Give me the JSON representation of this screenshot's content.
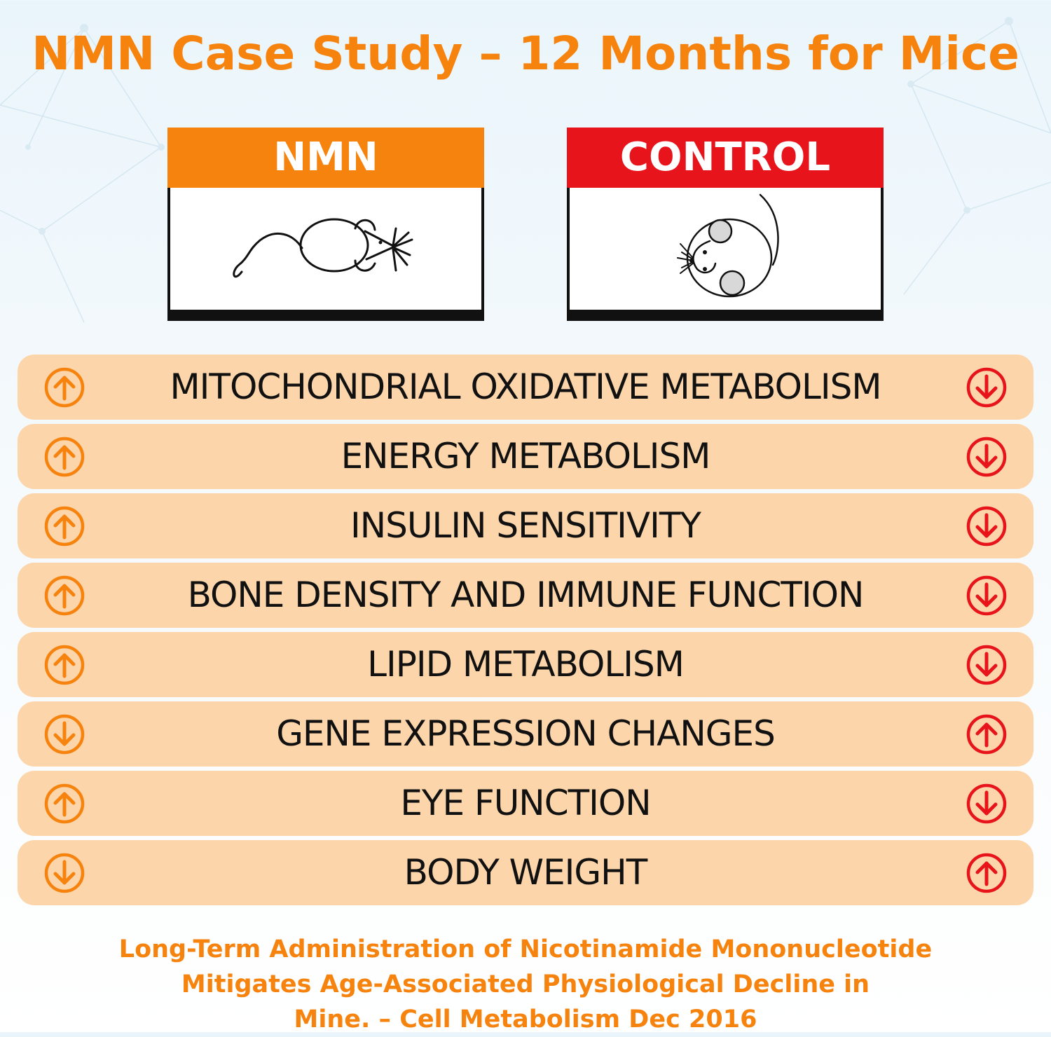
{
  "title": "NMN Case Study – 12 Months for Mice",
  "groups": {
    "nmn": {
      "label": "NMN",
      "color": "#f7830f",
      "icon": "thin-mouse-icon"
    },
    "control": {
      "label": "CONTROL",
      "color": "#e8141b",
      "icon": "fat-mouse-icon"
    }
  },
  "rows": [
    {
      "label": "MITOCHONDRIAL OXIDATIVE METABOLISM",
      "nmn": "up",
      "control": "down"
    },
    {
      "label": "ENERGY METABOLISM",
      "nmn": "up",
      "control": "down"
    },
    {
      "label": "INSULIN SENSITIVITY",
      "nmn": "up",
      "control": "down"
    },
    {
      "label": "BONE DENSITY AND IMMUNE FUNCTION",
      "nmn": "up",
      "control": "down"
    },
    {
      "label": "LIPID METABOLISM",
      "nmn": "up",
      "control": "down"
    },
    {
      "label": "GENE EXPRESSION CHANGES",
      "nmn": "down",
      "control": "up"
    },
    {
      "label": "EYE FUNCTION",
      "nmn": "up",
      "control": "down"
    },
    {
      "label": "BODY WEIGHT",
      "nmn": "down",
      "control": "up"
    }
  ],
  "citation": {
    "line1": "Long-Term Administration of Nicotinamide Mononucleotide",
    "line2": "Mitigates Age-Associated Physiological Decline in",
    "line3": "Mine. – Cell Metabolism Dec 2016"
  },
  "colors": {
    "row_bg": "#fcd5aa",
    "nmn_arrow": "#f7830f",
    "control_arrow": "#e8141b"
  }
}
